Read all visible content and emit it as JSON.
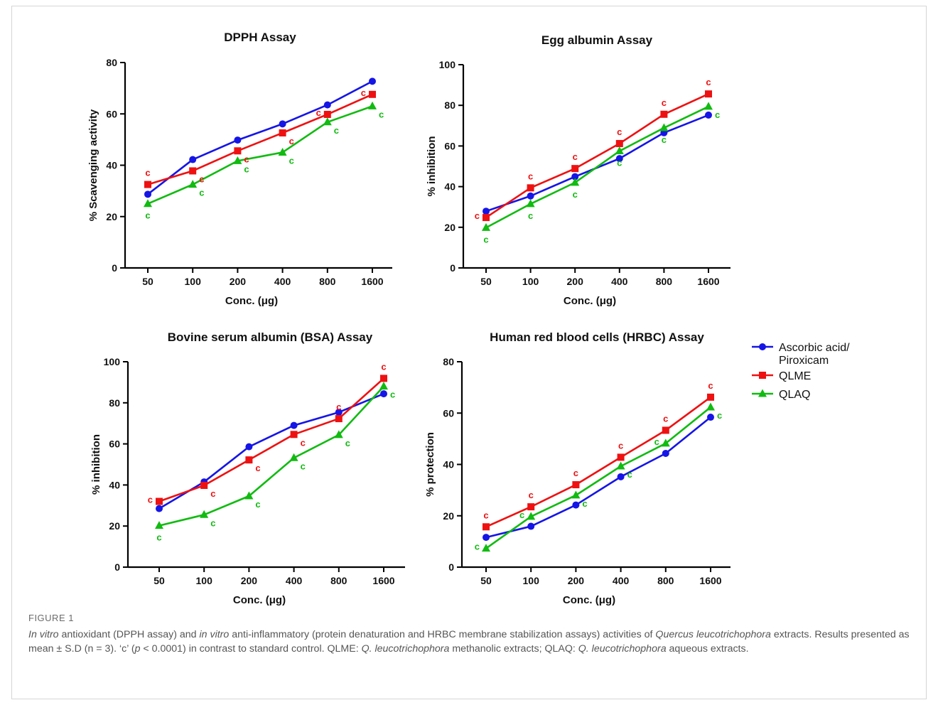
{
  "figure": {
    "label": "FIGURE 1",
    "caption": [
      {
        "t": "In vitro",
        "i": true
      },
      {
        "t": " antioxidant (DPPH assay) and ",
        "i": false
      },
      {
        "t": "in vitro",
        "i": true
      },
      {
        "t": " anti-inflammatory (protein denaturation and HRBC membrane stabilization assays) activities of ",
        "i": false
      },
      {
        "t": "Quercus leucotrichophora",
        "i": true
      },
      {
        "t": " extracts. Results presented as mean ± S.D (n = 3). ‘c’ (",
        "i": false
      },
      {
        "t": "p",
        "i": true
      },
      {
        "t": " < 0.0001) in contrast to standard control. QLME: ",
        "i": false
      },
      {
        "t": "Q. leucotrichophora",
        "i": true
      },
      {
        "t": " methanolic extracts; QLAQ: ",
        "i": false
      },
      {
        "t": "Q. leucotrichophora",
        "i": true
      },
      {
        "t": " aqueous extracts.",
        "i": false
      }
    ]
  },
  "legend": {
    "placement": "right",
    "entries": [
      {
        "name": "Ascorbic acid/\nPiroxicam",
        "color": "#1515e6",
        "marker": "circle"
      },
      {
        "name": "QLME",
        "color": "#ee1111",
        "marker": "square"
      },
      {
        "name": "QLAQ",
        "color": "#11bb11",
        "marker": "triangle"
      }
    ]
  },
  "chart_data": [
    {
      "type": "line",
      "title": "DPPH Assay",
      "xlabel": "Conc. (μg)",
      "ylabel": "% Scavenging activity",
      "categories": [
        "50",
        "100",
        "200",
        "400",
        "800",
        "1600"
      ],
      "ylim": [
        0,
        80
      ],
      "yticks": [
        0,
        20,
        40,
        60,
        80
      ],
      "series": [
        {
          "name": "Ascorbic acid/\nPiroxicam",
          "values": [
            28.7,
            42.2,
            49.8,
            56.1,
            63.5,
            72.7
          ]
        },
        {
          "name": "QLME",
          "values": [
            32.5,
            37.8,
            45.6,
            52.6,
            59.8,
            67.6
          ]
        },
        {
          "name": "QLAQ",
          "values": [
            25.0,
            32.5,
            41.7,
            45.0,
            56.8,
            63.0
          ]
        }
      ],
      "annotations": [
        {
          "series": "QLME",
          "labels": [
            "c",
            "c",
            "c",
            "c",
            "c",
            "c"
          ],
          "side": [
            "above",
            "right",
            "right",
            "right",
            "left",
            "left"
          ]
        },
        {
          "series": "QLAQ",
          "labels": [
            "c",
            "c",
            "c",
            "c",
            "c",
            "c"
          ],
          "side": [
            "below",
            "right",
            "right",
            "right",
            "right",
            "right"
          ]
        }
      ]
    },
    {
      "type": "line",
      "title": "Egg albumin Assay",
      "xlabel": "Conc. (μg)",
      "ylabel": "% inhibition",
      "categories": [
        "50",
        "100",
        "200",
        "400",
        "800",
        "1600"
      ],
      "ylim": [
        0,
        100
      ],
      "yticks": [
        0,
        20,
        40,
        60,
        80,
        100
      ],
      "series": [
        {
          "name": "Ascorbic acid/\nPiroxicam",
          "values": [
            27.9,
            35.4,
            44.9,
            53.8,
            66.5,
            75.2
          ]
        },
        {
          "name": "QLME",
          "values": [
            24.8,
            39.4,
            48.9,
            61.2,
            75.6,
            85.6
          ]
        },
        {
          "name": "QLAQ",
          "values": [
            19.8,
            31.5,
            42.0,
            57.5,
            68.9,
            79.4
          ]
        }
      ],
      "annotations": [
        {
          "series": "QLME",
          "labels": [
            "c",
            "c",
            "c",
            "c",
            "c",
            "c"
          ],
          "side": [
            "left",
            "above",
            "above",
            "above",
            "above",
            "above"
          ]
        },
        {
          "series": "QLAQ",
          "labels": [
            "c",
            "c",
            "c",
            "c",
            "c",
            "c"
          ],
          "side": [
            "below",
            "below",
            "below",
            "below",
            "below",
            "right"
          ]
        }
      ]
    },
    {
      "type": "line",
      "title": "Bovine serum albumin (BSA) Assay",
      "xlabel": "Conc. (μg)",
      "ylabel": "% inhibition",
      "categories": [
        "50",
        "100",
        "200",
        "400",
        "800",
        "1600"
      ],
      "ylim": [
        0,
        100
      ],
      "yticks": [
        0,
        20,
        40,
        60,
        80,
        100
      ],
      "series": [
        {
          "name": "Ascorbic acid/\nPiroxicam",
          "values": [
            28.5,
            41.5,
            58.6,
            69.0,
            75.4,
            84.4
          ]
        },
        {
          "name": "QLME",
          "values": [
            32.0,
            39.8,
            52.2,
            64.6,
            72.3,
            91.9
          ]
        },
        {
          "name": "QLAQ",
          "values": [
            20.2,
            25.5,
            34.6,
            53.2,
            64.4,
            88.0
          ]
        }
      ],
      "annotations": [
        {
          "series": "QLME",
          "labels": [
            "c",
            "c",
            "c",
            "c",
            "c",
            "c"
          ],
          "side": [
            "left",
            "right",
            "right",
            "right",
            "above",
            "above"
          ]
        },
        {
          "series": "QLAQ",
          "labels": [
            "c",
            "c",
            "c",
            "c",
            "c",
            "c"
          ],
          "side": [
            "below",
            "right",
            "right",
            "right",
            "right",
            "right"
          ]
        }
      ]
    },
    {
      "type": "line",
      "title": "Human red blood cells (HRBC) Assay",
      "xlabel": "Conc. (μg)",
      "ylabel": "% protection",
      "categories": [
        "50",
        "100",
        "200",
        "400",
        "800",
        "1600"
      ],
      "ylim": [
        0,
        80
      ],
      "yticks": [
        0,
        20,
        40,
        60,
        80
      ],
      "series": [
        {
          "name": "Ascorbic acid/\nPiroxicam",
          "values": [
            11.6,
            15.9,
            24.2,
            35.2,
            44.3,
            58.4
          ]
        },
        {
          "name": "QLME",
          "values": [
            15.7,
            23.5,
            32.1,
            42.8,
            53.3,
            66.2
          ]
        },
        {
          "name": "QLAQ",
          "values": [
            7.3,
            19.7,
            28.0,
            39.3,
            48.2,
            62.3
          ]
        }
      ],
      "annotations": [
        {
          "series": "QLME",
          "labels": [
            "c",
            "c",
            "c",
            "c",
            "c",
            "c"
          ],
          "side": [
            "above",
            "above",
            "above",
            "above",
            "above",
            "above"
          ]
        },
        {
          "series": "QLAQ",
          "labels": [
            "c",
            "c",
            "c",
            "c",
            "c",
            "c"
          ],
          "side": [
            "left",
            "left",
            "right",
            "right",
            "left",
            "right"
          ]
        }
      ]
    }
  ]
}
